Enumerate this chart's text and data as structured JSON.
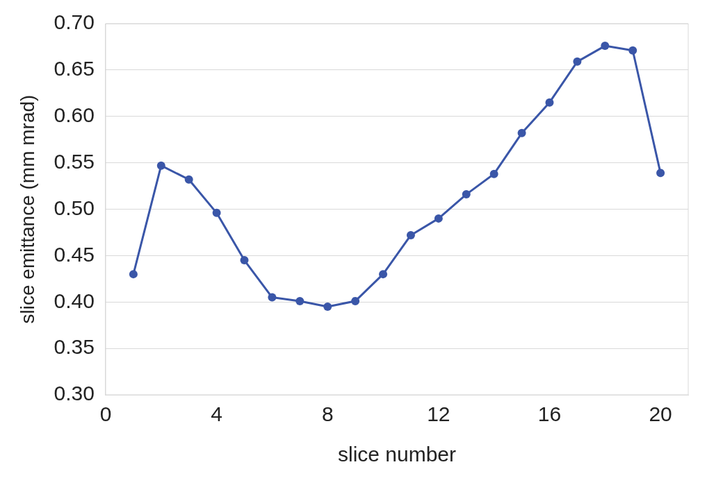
{
  "chart_data": {
    "type": "line",
    "xlabel": "slice number",
    "ylabel": "slice emittance (mm mrad)",
    "x": [
      1,
      2,
      3,
      4,
      5,
      6,
      7,
      8,
      9,
      10,
      11,
      12,
      13,
      14,
      15,
      16,
      17,
      18,
      19,
      20
    ],
    "series": [
      {
        "color": "#3a56a8",
        "values": [
          0.43,
          0.547,
          0.532,
          0.496,
          0.445,
          0.405,
          0.401,
          0.395,
          0.401,
          0.43,
          0.472,
          0.49,
          0.516,
          0.538,
          0.582,
          0.615,
          0.659,
          0.676,
          0.671,
          0.539
        ]
      }
    ],
    "xlim": [
      0,
      21
    ],
    "xticks": [
      0,
      4,
      8,
      12,
      16,
      20
    ],
    "ylim": [
      0.3,
      0.7
    ],
    "yticks": [
      {
        "value": 0.3,
        "label": "0.30"
      },
      {
        "value": 0.35,
        "label": "0.35"
      },
      {
        "value": 0.4,
        "label": "0.40"
      },
      {
        "value": 0.45,
        "label": "0.45"
      },
      {
        "value": 0.5,
        "label": "0.50"
      },
      {
        "value": 0.55,
        "label": "0.55"
      },
      {
        "value": 0.6,
        "label": "0.60"
      },
      {
        "value": 0.65,
        "label": "0.65"
      },
      {
        "value": 0.7,
        "label": "0.70"
      }
    ],
    "grid": "y",
    "marker": "circle",
    "line_style": "solid",
    "legend": false
  }
}
